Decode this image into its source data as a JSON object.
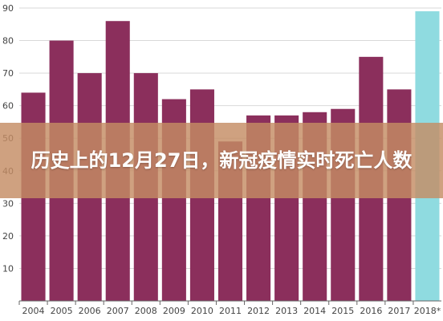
{
  "chart_data": {
    "type": "bar",
    "categories": [
      "2004",
      "2005",
      "2006",
      "2007",
      "2008",
      "2009",
      "2010",
      "2011",
      "2012",
      "2013",
      "2014",
      "2015",
      "2016",
      "2017",
      "2018*"
    ],
    "values": [
      64,
      80,
      70,
      86,
      70,
      62,
      65,
      49,
      57,
      57,
      58,
      59,
      75,
      65,
      89
    ],
    "ylim": [
      0,
      90
    ],
    "yticks": [
      0,
      10,
      20,
      30,
      40,
      50,
      60,
      70,
      80,
      90
    ],
    "grid": true,
    "colors": {
      "bar": "#8b2f5c",
      "highlight": "#8fdbe0",
      "grid": "#d9d9d9",
      "axis": "#666666"
    },
    "highlight_index": 14
  },
  "overlay": {
    "title": "历史上的12月27日，新冠疫情实时死亡人数"
  }
}
